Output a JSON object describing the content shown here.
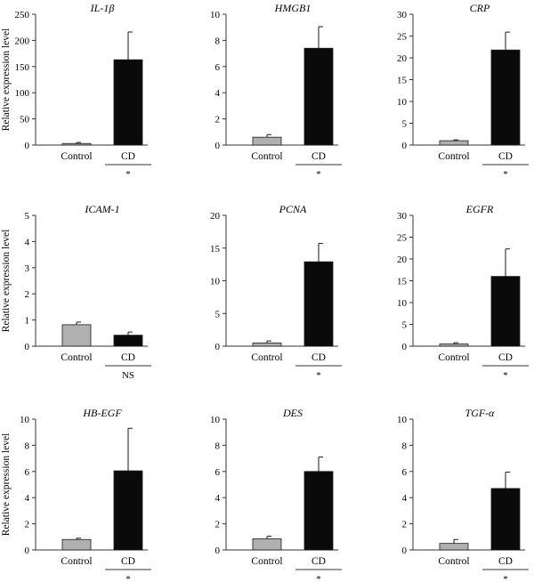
{
  "figure": {
    "ylabel": "Relative expression level"
  },
  "chart_data": [
    {
      "type": "bar",
      "title": "IL-1β",
      "categories": [
        "Control",
        "CD"
      ],
      "values": [
        3,
        163
      ],
      "errors": [
        2,
        53
      ],
      "ylim": [
        0,
        250
      ],
      "yticks": [
        0,
        50,
        100,
        150,
        200,
        250
      ],
      "ylabel": "Relative expression level",
      "significance": "*",
      "colors": [
        "#b0b0b0",
        "#0a0a0a"
      ]
    },
    {
      "type": "bar",
      "title": "HMGB1",
      "categories": [
        "Control",
        "CD"
      ],
      "values": [
        0.6,
        7.4
      ],
      "errors": [
        0.2,
        1.65
      ],
      "ylim": [
        0,
        10
      ],
      "yticks": [
        0,
        2,
        4,
        6,
        8,
        10
      ],
      "ylabel": "",
      "significance": "*",
      "colors": [
        "#b0b0b0",
        "#0a0a0a"
      ]
    },
    {
      "type": "bar",
      "title": "CRP",
      "categories": [
        "Control",
        "CD"
      ],
      "values": [
        1.0,
        21.8
      ],
      "errors": [
        0.2,
        4.1
      ],
      "ylim": [
        0,
        30
      ],
      "yticks": [
        0,
        5,
        10,
        15,
        20,
        25,
        30
      ],
      "ylabel": "",
      "significance": "*",
      "colors": [
        "#b0b0b0",
        "#0a0a0a"
      ]
    },
    {
      "type": "bar",
      "title": "ICAM-1",
      "categories": [
        "Control",
        "CD"
      ],
      "values": [
        0.82,
        0.42
      ],
      "errors": [
        0.1,
        0.12
      ],
      "ylim": [
        0,
        5
      ],
      "yticks": [
        0,
        1,
        2,
        3,
        4,
        5
      ],
      "ylabel": "Relative expression level",
      "significance": "NS",
      "colors": [
        "#b0b0b0",
        "#0a0a0a"
      ]
    },
    {
      "type": "bar",
      "title": "PCNA",
      "categories": [
        "Control",
        "CD"
      ],
      "values": [
        0.5,
        12.9
      ],
      "errors": [
        0.3,
        2.8
      ],
      "ylim": [
        0,
        20
      ],
      "yticks": [
        0,
        5,
        10,
        15,
        20
      ],
      "ylabel": "",
      "significance": "*",
      "colors": [
        "#b0b0b0",
        "#0a0a0a"
      ]
    },
    {
      "type": "bar",
      "title": "EGFR",
      "categories": [
        "Control",
        "CD"
      ],
      "values": [
        0.5,
        16.0
      ],
      "errors": [
        0.3,
        6.3
      ],
      "ylim": [
        0,
        30
      ],
      "yticks": [
        0,
        5,
        10,
        15,
        20,
        25,
        30
      ],
      "ylabel": "",
      "significance": "*",
      "colors": [
        "#b0b0b0",
        "#0a0a0a"
      ]
    },
    {
      "type": "bar",
      "title": "HB-EGF",
      "categories": [
        "Control",
        "CD"
      ],
      "values": [
        0.8,
        6.05
      ],
      "errors": [
        0.1,
        3.25
      ],
      "ylim": [
        0,
        10
      ],
      "yticks": [
        0,
        2,
        4,
        6,
        8,
        10
      ],
      "ylabel": "Relative expression level",
      "significance": "*",
      "colors": [
        "#b0b0b0",
        "#0a0a0a"
      ]
    },
    {
      "type": "bar",
      "title": "DES",
      "categories": [
        "Control",
        "CD"
      ],
      "values": [
        0.85,
        6.0
      ],
      "errors": [
        0.2,
        1.1
      ],
      "ylim": [
        0,
        10
      ],
      "yticks": [
        0,
        2,
        4,
        6,
        8,
        10
      ],
      "ylabel": "",
      "significance": "*",
      "colors": [
        "#b0b0b0",
        "#0a0a0a"
      ]
    },
    {
      "type": "bar",
      "title": "TGF-α",
      "categories": [
        "Control",
        "CD"
      ],
      "values": [
        0.5,
        4.7
      ],
      "errors": [
        0.3,
        1.25
      ],
      "ylim": [
        0,
        10
      ],
      "yticks": [
        0,
        2,
        4,
        6,
        8,
        10
      ],
      "ylabel": "",
      "significance": "*",
      "colors": [
        "#b0b0b0",
        "#0a0a0a"
      ]
    }
  ]
}
